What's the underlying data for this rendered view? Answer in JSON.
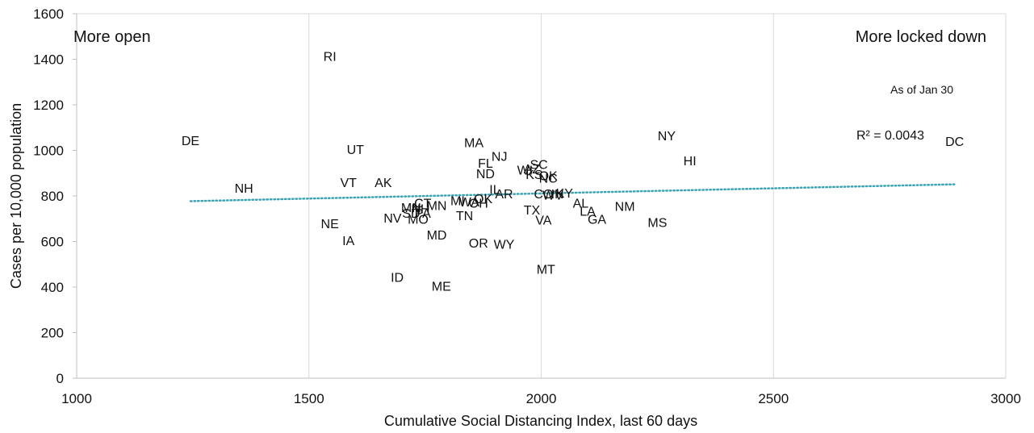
{
  "chart_data": {
    "type": "scatter",
    "title": "",
    "xlabel": "Cumulative Social Distancing Index, last 60 days",
    "ylabel": "Cases per 10,000 population",
    "xlim": [
      1000,
      3000
    ],
    "ylim": [
      0,
      1600
    ],
    "x_ticks": [
      "1000",
      "1500",
      "2000",
      "2500",
      "3000"
    ],
    "y_ticks": [
      "0",
      "200",
      "400",
      "600",
      "800",
      "1000",
      "1200",
      "1400",
      "1600"
    ],
    "grid": "vertical major only",
    "annotations": {
      "left": "More open",
      "right": "More locked down",
      "as_of": "As of Jan 30"
    },
    "trendline": {
      "style": "dotted",
      "color": "#3aa3b2",
      "label": "R² = 0.0043",
      "x": [
        1245,
        2890
      ],
      "y": [
        777,
        851
      ]
    },
    "points": [
      {
        "label": "RI",
        "x": 1545,
        "y": 1415
      },
      {
        "label": "DE",
        "x": 1245,
        "y": 1045
      },
      {
        "label": "UT",
        "x": 1600,
        "y": 1005
      },
      {
        "label": "MA",
        "x": 1855,
        "y": 1035
      },
      {
        "label": "NJ",
        "x": 1910,
        "y": 975
      },
      {
        "label": "FL",
        "x": 1880,
        "y": 945
      },
      {
        "label": "ND",
        "x": 1880,
        "y": 900
      },
      {
        "label": "SC",
        "x": 1995,
        "y": 940
      },
      {
        "label": "WI",
        "x": 1965,
        "y": 915
      },
      {
        "label": "AZ",
        "x": 1980,
        "y": 920
      },
      {
        "label": "KS",
        "x": 1985,
        "y": 895
      },
      {
        "label": "OK",
        "x": 2015,
        "y": 890
      },
      {
        "label": "NE",
        "x": 1545,
        "y": 680
      },
      {
        "label": "NC",
        "x": 2015,
        "y": 880
      },
      {
        "label": "NY",
        "x": 2270,
        "y": 1065
      },
      {
        "label": "HI",
        "x": 2320,
        "y": 955
      },
      {
        "label": "DC",
        "x": 2890,
        "y": 1040
      },
      {
        "label": "NH",
        "x": 1360,
        "y": 835
      },
      {
        "label": "VT",
        "x": 1585,
        "y": 860
      },
      {
        "label": "AK",
        "x": 1660,
        "y": 860
      },
      {
        "label": "IL",
        "x": 1900,
        "y": 830
      },
      {
        "label": "AR",
        "x": 1920,
        "y": 810
      },
      {
        "label": "CO",
        "x": 2005,
        "y": 810
      },
      {
        "label": "IN",
        "x": 2035,
        "y": 810
      },
      {
        "label": "KY",
        "x": 2050,
        "y": 815
      },
      {
        "label": "WV",
        "x": 2025,
        "y": 805
      },
      {
        "label": "OK",
        "x": 1875,
        "y": 790
      },
      {
        "label": "MI",
        "x": 1820,
        "y": 780
      },
      {
        "label": "WA",
        "x": 1845,
        "y": 775
      },
      {
        "label": "OH",
        "x": 1865,
        "y": 770
      },
      {
        "label": "MN",
        "x": 1775,
        "y": 760
      },
      {
        "label": "CT",
        "x": 1745,
        "y": 770
      },
      {
        "label": "MN",
        "x": 1720,
        "y": 750
      },
      {
        "label": "NH",
        "x": 1740,
        "y": 745
      },
      {
        "label": "AL",
        "x": 2085,
        "y": 770
      },
      {
        "label": "LA",
        "x": 2100,
        "y": 735
      },
      {
        "label": "NM",
        "x": 2180,
        "y": 755
      },
      {
        "label": "TX",
        "x": 1980,
        "y": 740
      },
      {
        "label": "SD",
        "x": 1720,
        "y": 725
      },
      {
        "label": "PA",
        "x": 1745,
        "y": 725
      },
      {
        "label": "NV",
        "x": 1680,
        "y": 705
      },
      {
        "label": "TN",
        "x": 1835,
        "y": 715
      },
      {
        "label": "MO",
        "x": 1735,
        "y": 700
      },
      {
        "label": "VA",
        "x": 2005,
        "y": 695
      },
      {
        "label": "GA",
        "x": 2120,
        "y": 700
      },
      {
        "label": "MS",
        "x": 2250,
        "y": 685
      },
      {
        "label": "IA",
        "x": 1585,
        "y": 605
      },
      {
        "label": "MD",
        "x": 1775,
        "y": 630
      },
      {
        "label": "OR",
        "x": 1865,
        "y": 595
      },
      {
        "label": "WY",
        "x": 1920,
        "y": 590
      },
      {
        "label": "MT",
        "x": 2010,
        "y": 480
      },
      {
        "label": "ID",
        "x": 1690,
        "y": 445
      },
      {
        "label": "ME",
        "x": 1785,
        "y": 405
      }
    ]
  }
}
